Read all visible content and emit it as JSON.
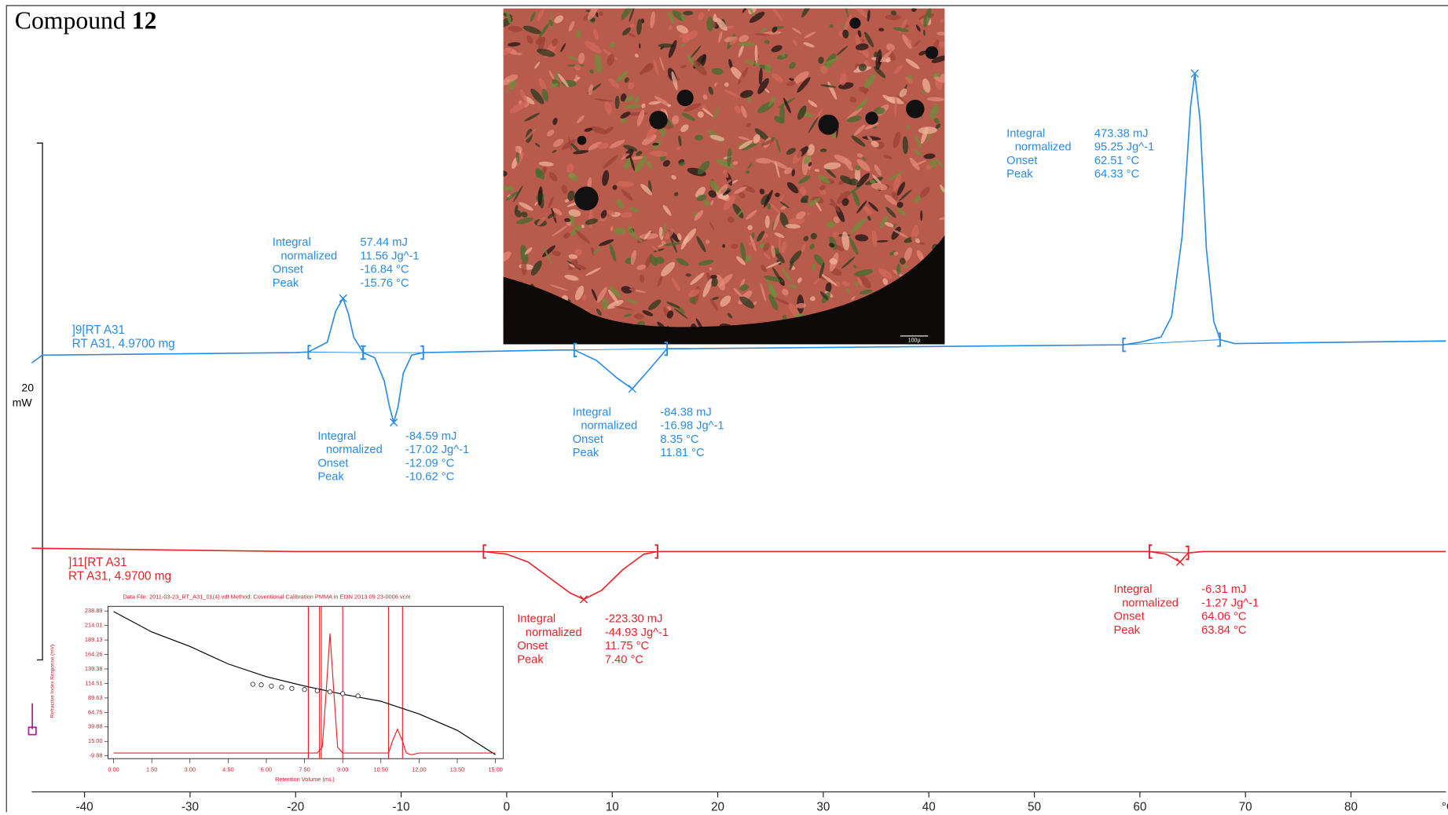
{
  "chart_data": [
    {
      "type": "line",
      "title": "Compound",
      "title_bold": "12",
      "xlim": [
        -45,
        89
      ],
      "ylim": [
        0,
        30
      ],
      "xticks": [
        -40,
        -30,
        -20,
        -10,
        0,
        10,
        20,
        30,
        40,
        50,
        60,
        70,
        80
      ],
      "xlabel": "°C",
      "scale_bar": {
        "value": 20,
        "label": "20",
        "unit": "mW"
      },
      "micrograph_scale": "100µ",
      "series": [
        {
          "name": "]9[RT A31",
          "sample": "RT A31, 4.9700 mg",
          "color": "#2a8be0",
          "x": [
            -45,
            -44,
            -20,
            -18.8,
            -17,
            -16.2,
            -15.5,
            -15,
            -14.5,
            -13.6,
            -12.5,
            -11.6,
            -11.1,
            -10.7,
            -10.3,
            -9.8,
            -9,
            -7.9,
            5,
            6.4,
            8.5,
            10.5,
            11.9,
            13.2,
            15.2,
            17,
            58.4,
            60,
            62,
            63,
            64,
            64.8,
            65.2,
            65.7,
            66.3,
            67,
            67.6,
            69,
            89
          ],
          "values": [
            16.6,
            16.9,
            17.0,
            17.02,
            17.4,
            18.6,
            19.1,
            18.5,
            17.6,
            17.0,
            16.8,
            15.9,
            14.9,
            14.3,
            14.9,
            16.2,
            16.9,
            17.0,
            17.1,
            17.1,
            16.7,
            16.0,
            15.6,
            16.2,
            17.15,
            17.15,
            17.3,
            17.4,
            17.6,
            18.4,
            21.5,
            26.5,
            27.8,
            26.0,
            21.0,
            18.2,
            17.5,
            17.35,
            17.45
          ],
          "annotations": [
            {
              "limits": [
                -18.8,
                -13.6
              ],
              "labels": [
                "Integral",
                "normalized",
                "Onset",
                "Peak"
              ],
              "values": [
                "57.44 mJ",
                "11.56 Jg^-1",
                "-16.84 °C",
                "-15.76 °C"
              ]
            },
            {
              "limits": [
                -13.6,
                -7.9
              ],
              "labels": [
                "Integral",
                "normalized",
                "Onset",
                "Peak"
              ],
              "values": [
                "-84.59 mJ",
                "-17.02 Jg^-1",
                "-12.09 °C",
                "-10.62 °C"
              ]
            },
            {
              "limits": [
                6.4,
                15.2
              ],
              "labels": [
                "Integral",
                "normalized",
                "Onset",
                "Peak"
              ],
              "values": [
                "-84.38 mJ",
                "-16.98 Jg^-1",
                "8.35 °C",
                "11.81 °C"
              ]
            },
            {
              "limits": [
                58.4,
                67.6
              ],
              "labels": [
                "Integral",
                "normalized",
                "Onset",
                "Peak"
              ],
              "values": [
                "473.38 mJ",
                "95.25 Jg^-1",
                "62.51 °C",
                "64.33 °C"
              ]
            }
          ]
        },
        {
          "name": "]11[RT A31",
          "sample": "RT A31, 4.9700 mg",
          "color": "#e8232a",
          "x": [
            -45,
            -20,
            -2.2,
            0,
            2,
            4,
            6,
            7.3,
            9,
            11,
            13,
            14.3,
            40,
            60.9,
            62.5,
            63.8,
            64.6,
            66,
            89
          ],
          "values": [
            9.43,
            9.3,
            9.3,
            9.2,
            8.9,
            8.3,
            7.7,
            7.45,
            7.8,
            8.6,
            9.2,
            9.3,
            9.3,
            9.3,
            9.2,
            8.9,
            9.25,
            9.3,
            9.3
          ],
          "annotations": [
            {
              "limits": [
                -2.2,
                14.3
              ],
              "labels": [
                "Integral",
                "normalized",
                "Onset",
                "Peak"
              ],
              "values": [
                "-223.30 mJ",
                "-44.93 Jg^-1",
                "11.75 °C",
                "7.40 °C"
              ]
            },
            {
              "limits": [
                60.9,
                64.6
              ],
              "labels": [
                "Integral",
                "normalized",
                "Onset",
                "Peak"
              ],
              "values": [
                "-6.31 mJ",
                "-1.27 Jg^-1",
                "64.06 °C",
                "63.84 °C"
              ]
            }
          ]
        }
      ]
    },
    {
      "type": "line",
      "title": "Data File: 2011-03-23_RT_A31_01(4).vdt  Method: Coventional Calibration PMMA in Et3N 2013 09 23-0006.vcm",
      "xlabel": "Retention Volume (mL)",
      "ylabel": "Refractive Index Response (mV)",
      "xlim": [
        0,
        15
      ],
      "ylim": [
        -9.88,
        238.89
      ],
      "xticks": [
        {
          "value": 0,
          "label": "0.00"
        },
        {
          "value": 1.5,
          "label": "1.50"
        },
        {
          "value": 3,
          "label": "3.00"
        },
        {
          "value": 4.5,
          "label": "4.50"
        },
        {
          "value": 6,
          "label": "6.00"
        },
        {
          "value": 7.5,
          "label": "7.50"
        },
        {
          "value": 9,
          "label": "9.00"
        },
        {
          "value": 10.5,
          "label": "10.50"
        },
        {
          "value": 12,
          "label": "12.00"
        },
        {
          "value": 13.5,
          "label": "13.50"
        },
        {
          "value": 15,
          "label": "15.00"
        }
      ],
      "yticks": [
        238.89,
        214.01,
        189.13,
        164.26,
        139.38,
        114.51,
        89.63,
        64.75,
        39.88,
        {
          "value": 15,
          "label": "15.00"
        },
        -9.88
      ],
      "series": [
        {
          "color": "#000000",
          "x": [
            0,
            1.5,
            3,
            4.5,
            6,
            7.5,
            9,
            10.5,
            12,
            13.5,
            15
          ],
          "values": [
            238,
            203,
            178,
            148,
            126,
            110,
            96,
            84,
            62,
            34,
            -8
          ]
        },
        {
          "color": "#e8232a",
          "x": [
            0,
            8.0,
            8.2,
            8.35,
            8.5,
            8.65,
            8.8,
            9.0,
            10.8,
            10.95,
            11.15,
            11.35,
            11.5,
            11.7,
            12,
            15
          ],
          "values": [
            -5,
            -5,
            5,
            100,
            200,
            100,
            5,
            -5,
            -5,
            15,
            36,
            15,
            -5,
            -8,
            -5,
            -5
          ]
        }
      ],
      "calibration_points": {
        "x": [
          5.47,
          5.8,
          6.2,
          6.6,
          7.0,
          7.5,
          8.0,
          8.5,
          9.0,
          9.6
        ],
        "values": [
          113,
          112,
          110,
          108,
          106,
          104,
          102,
          100,
          97,
          93
        ]
      },
      "cutoffs": [
        7.65,
        8.09,
        8.16,
        9.0,
        10.8,
        11.35
      ]
    }
  ]
}
